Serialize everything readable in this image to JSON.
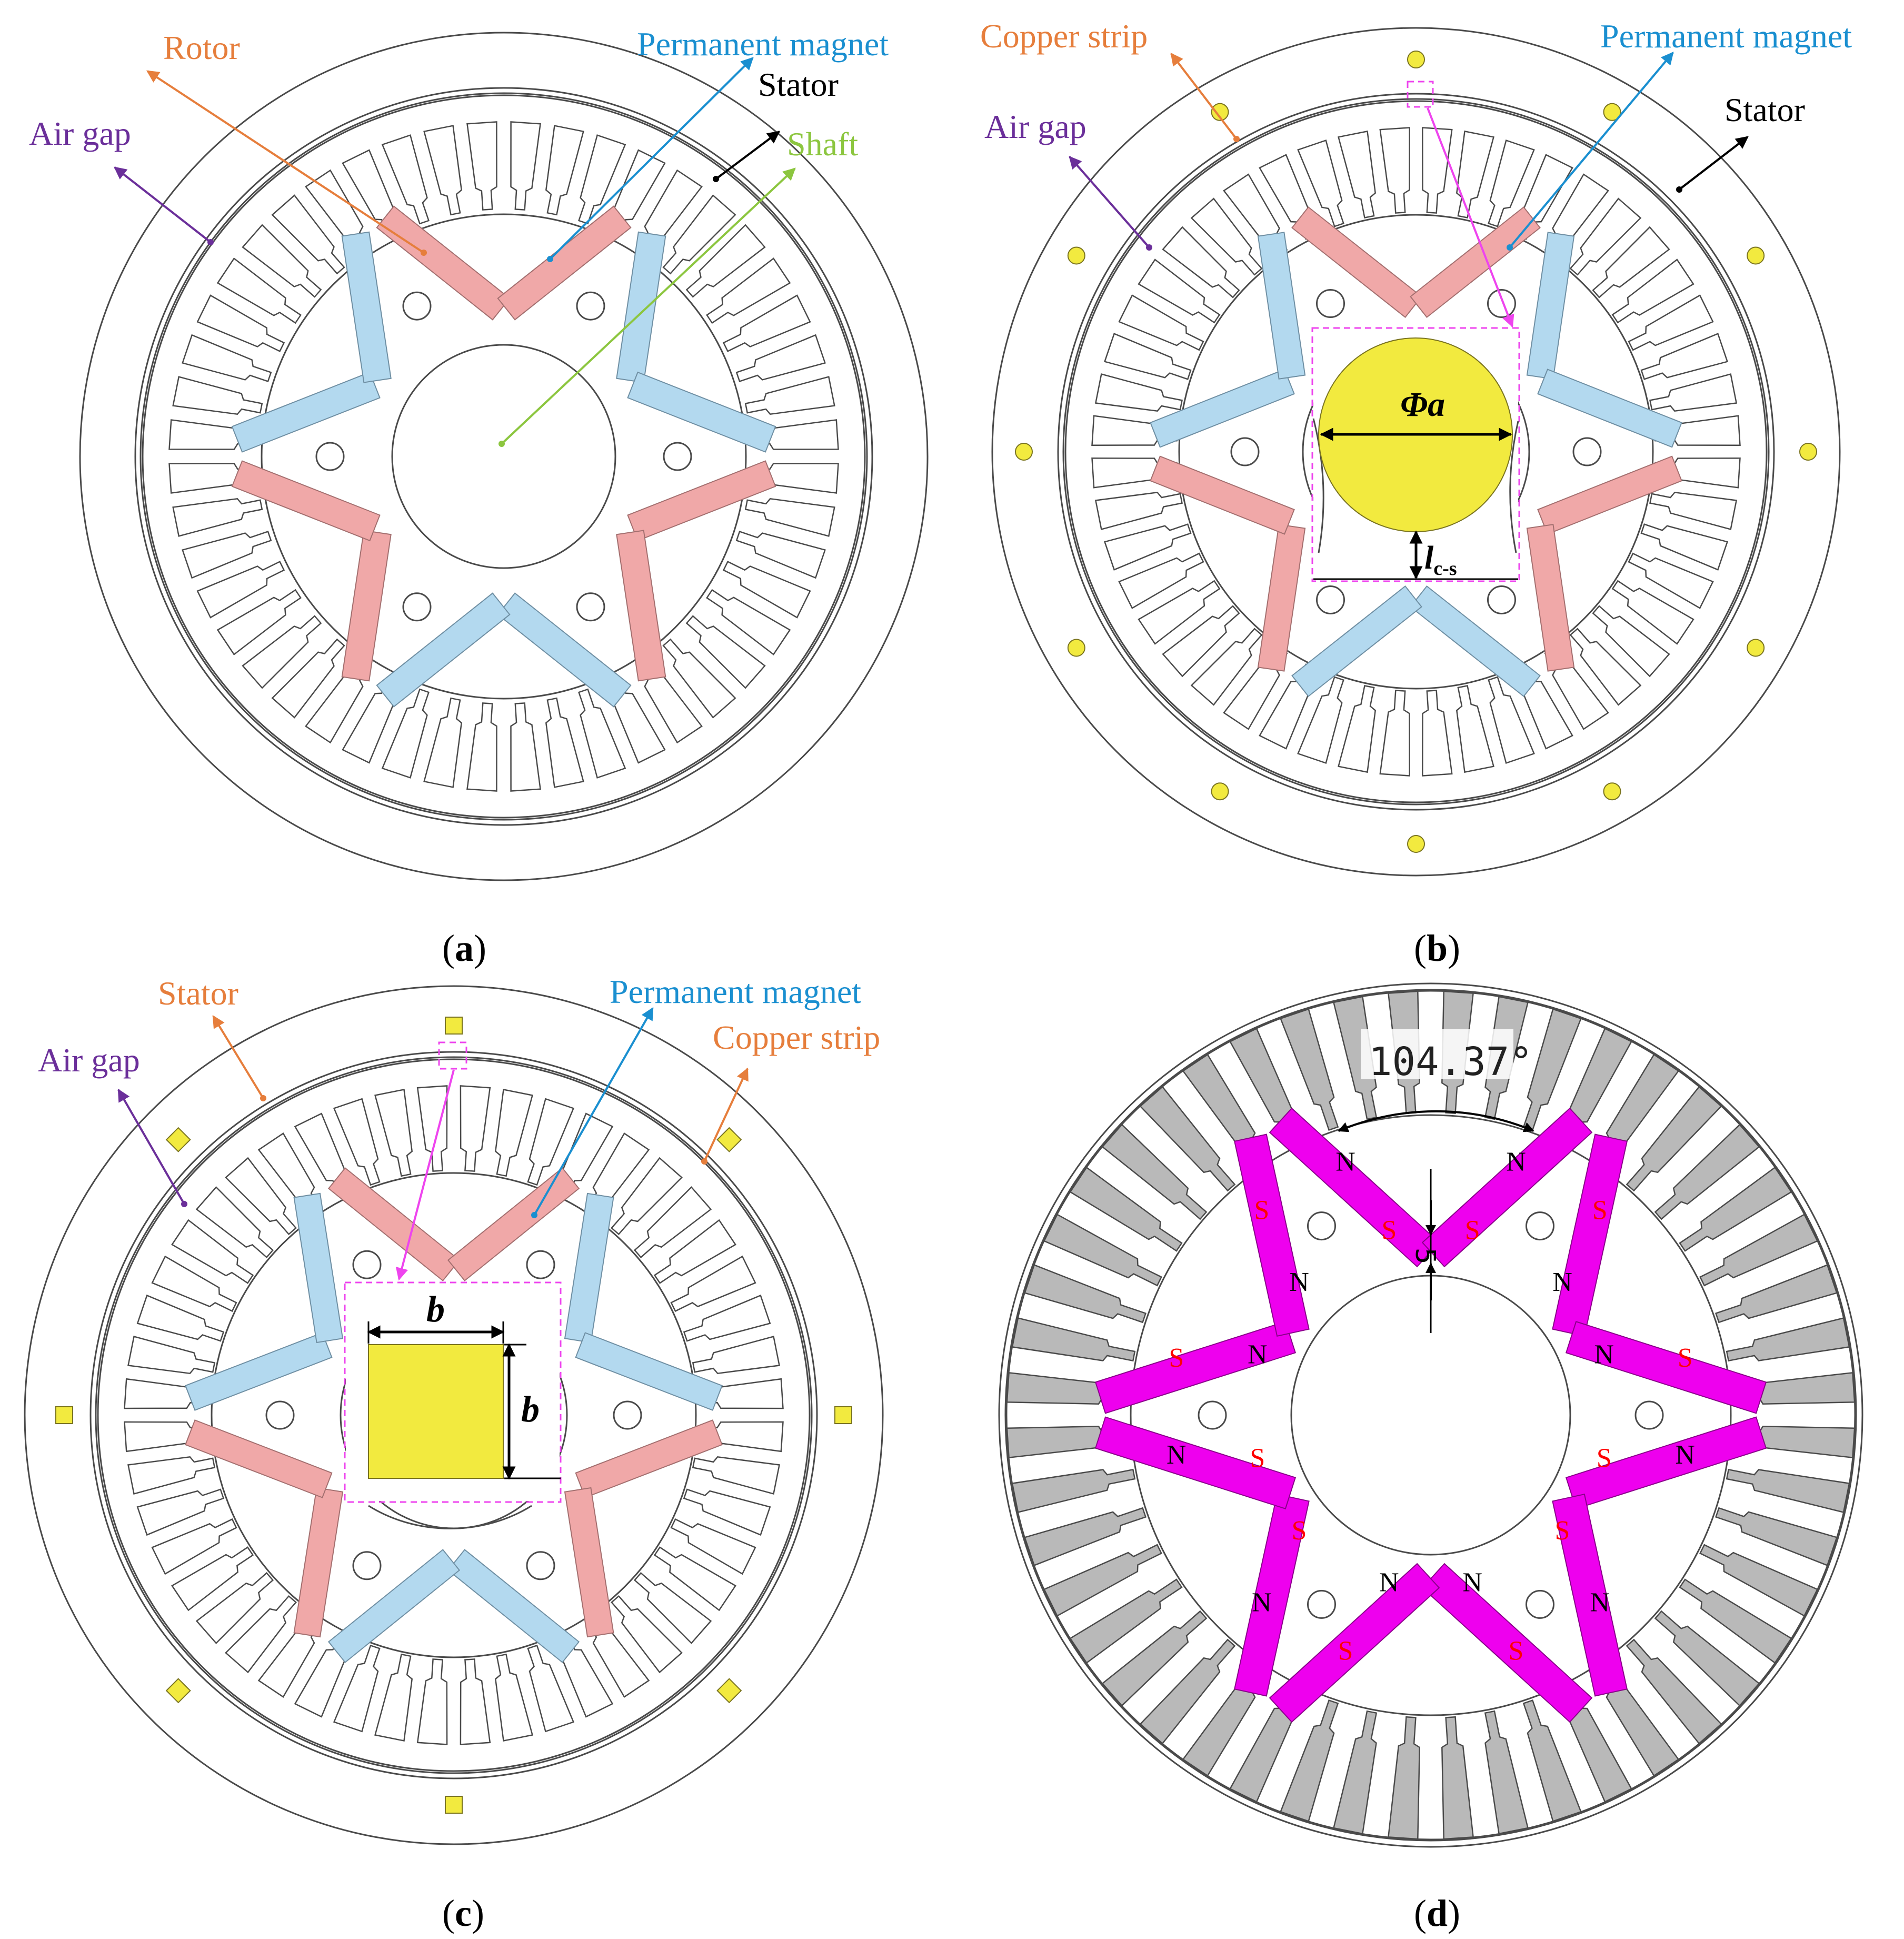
{
  "figure": {
    "panels": [
      {
        "id": "a",
        "caption": "(a)",
        "labels": {
          "rotor": "Rotor",
          "permanent_magnet": "Permanent magnet",
          "stator": "Stator",
          "shaft": "Shaft",
          "air_gap": "Air gap"
        }
      },
      {
        "id": "b",
        "caption": "(b)",
        "labels": {
          "copper_strip": "Copper strip",
          "permanent_magnet": "Permanent magnet",
          "stator": "Stator",
          "air_gap": "Air gap"
        },
        "dimensions": {
          "diameter": "Φa",
          "distance": "l",
          "distance_sub": "c-s"
        },
        "copper_strip_count": 12,
        "copper_strip_shape": "circle"
      },
      {
        "id": "c",
        "caption": "(c)",
        "labels": {
          "stator": "Stator",
          "permanent_magnet": "Permanent magnet",
          "copper_strip": "Copper strip",
          "air_gap": "Air gap"
        },
        "dimensions": {
          "width": "b",
          "height": "b"
        },
        "copper_strip_count": 8,
        "copper_strip_shape": "square"
      },
      {
        "id": "d",
        "caption": "(d)",
        "angle": "104.37°",
        "bridge": "5",
        "pole_north": "N",
        "pole_south": "S"
      }
    ],
    "stator_slots": 48,
    "pole_pairs": 3,
    "colors": {
      "rotor": "#e67e3c",
      "permanent_magnet": "#1a8fd0",
      "stator": "#000000",
      "shaft": "#8cc63f",
      "air_gap": "#6b2f9a",
      "copper_strip": "#e67e3c",
      "copper_fill": "#f2ea3f",
      "magnet_pink": "#ee00ee",
      "pole_south": "#ff0000",
      "dashed_box": "#ee44ee"
    }
  }
}
